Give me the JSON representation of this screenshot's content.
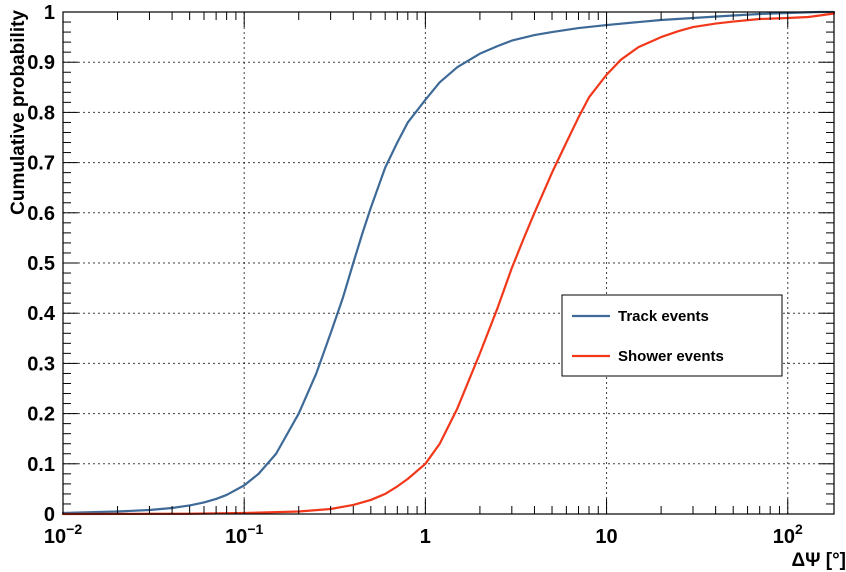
{
  "chart_data": {
    "type": "line",
    "xlabel": "ΔΨ [°]",
    "ylabel": "Cumulative probability",
    "xscale": "log",
    "xlim": [
      0.01,
      180
    ],
    "ylim": [
      0,
      1
    ],
    "grid": true,
    "legend_position": "center-right",
    "x_tick_labels": [
      {
        "value": 0.01,
        "base": "10",
        "exp": "−2"
      },
      {
        "value": 0.1,
        "base": "10",
        "exp": "−1"
      },
      {
        "value": 1,
        "base": "1",
        "exp": ""
      },
      {
        "value": 10,
        "base": "10",
        "exp": ""
      },
      {
        "value": 100,
        "base": "10",
        "exp": "2"
      }
    ],
    "y_tick_labels": [
      "0",
      "0.1",
      "0.2",
      "0.3",
      "0.4",
      "0.5",
      "0.6",
      "0.7",
      "0.8",
      "0.9",
      "1"
    ],
    "series": [
      {
        "name": "Track events",
        "color": "#3e6a97",
        "x": [
          0.01,
          0.02,
          0.03,
          0.04,
          0.05,
          0.06,
          0.07,
          0.08,
          0.1,
          0.12,
          0.15,
          0.2,
          0.25,
          0.3,
          0.35,
          0.4,
          0.45,
          0.5,
          0.6,
          0.7,
          0.8,
          1.0,
          1.2,
          1.5,
          2.0,
          2.5,
          3.0,
          4.0,
          5.0,
          7.0,
          10,
          15,
          20,
          30,
          50,
          70,
          100,
          150,
          180
        ],
        "y": [
          0.002,
          0.005,
          0.008,
          0.012,
          0.017,
          0.023,
          0.03,
          0.038,
          0.057,
          0.08,
          0.12,
          0.2,
          0.28,
          0.36,
          0.43,
          0.5,
          0.56,
          0.61,
          0.69,
          0.74,
          0.78,
          0.825,
          0.86,
          0.89,
          0.917,
          0.932,
          0.943,
          0.954,
          0.96,
          0.968,
          0.974,
          0.98,
          0.984,
          0.988,
          0.993,
          0.996,
          0.998,
          1.0,
          1.0
        ]
      },
      {
        "name": "Shower events",
        "color": "#f2381a",
        "x": [
          0.01,
          0.05,
          0.1,
          0.2,
          0.3,
          0.4,
          0.5,
          0.6,
          0.7,
          0.8,
          1.0,
          1.2,
          1.5,
          2.0,
          2.5,
          3.0,
          3.5,
          4.0,
          5.0,
          6.0,
          7.0,
          8.0,
          10,
          12,
          15,
          20,
          25,
          30,
          40,
          50,
          70,
          100,
          130,
          150,
          180
        ],
        "y": [
          0.0,
          0.0005,
          0.002,
          0.005,
          0.01,
          0.018,
          0.028,
          0.04,
          0.055,
          0.07,
          0.1,
          0.14,
          0.21,
          0.32,
          0.41,
          0.49,
          0.55,
          0.6,
          0.68,
          0.74,
          0.79,
          0.83,
          0.875,
          0.905,
          0.93,
          0.95,
          0.962,
          0.97,
          0.977,
          0.981,
          0.986,
          0.988,
          0.99,
          0.993,
          0.997
        ]
      }
    ]
  }
}
